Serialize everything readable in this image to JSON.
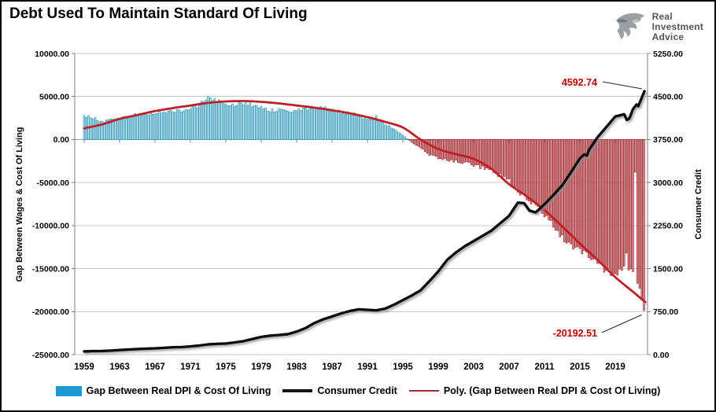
{
  "header": {
    "title": "Debt Used To Maintain Standard Of Living",
    "logo": {
      "icon": "eagle-icon",
      "lines": [
        "Real",
        "Investment",
        "Advice"
      ]
    }
  },
  "chart_data": {
    "type": "combo",
    "title": "Debt Used To Maintain Standard Of Living",
    "grid": "horizontal",
    "legend_position": "bottom",
    "x_axis": {
      "tick_years": [
        1959,
        1963,
        1967,
        1971,
        1975,
        1979,
        1983,
        1987,
        1991,
        1995,
        1999,
        2003,
        2007,
        2011,
        2015,
        2019
      ],
      "tick_labels": [
        "1959",
        "1963",
        "1967",
        "1971",
        "1975",
        "1979",
        "1983",
        "1987",
        "1991",
        "1995",
        "1999",
        "2003",
        "2007",
        "2011",
        "2015",
        "2019"
      ]
    },
    "left_axis": {
      "label": "Gap Between Wages & Cost Of Living",
      "min": -25000,
      "max": 10000,
      "tick_values": [
        10000,
        5000,
        0,
        -5000,
        -10000,
        -15000,
        -20000,
        -25000
      ],
      "tick_labels": [
        "10000.00",
        "5000.00",
        "0.00",
        "-5000.00",
        "-10000.00",
        "-15000.00",
        "-20000.00",
        "-25000.00"
      ]
    },
    "right_axis": {
      "label": "Consumer Credit",
      "min": 0,
      "max": 5250,
      "tick_values": [
        5250,
        4500,
        3750,
        3000,
        2250,
        1500,
        750,
        0
      ],
      "tick_labels": [
        "5250.00",
        "4500.00",
        "3750.00",
        "3000.00",
        "2250.00",
        "1500.00",
        "750.00",
        "0.00"
      ]
    },
    "series": [
      {
        "name": "Gap Between Real DPI & Cost Of Living",
        "type": "bar",
        "axis": "left",
        "bars_per_year": 4,
        "fill_positive": "#c6e9f3",
        "stroke_positive": "#2e93b2",
        "fill_negative": "#dc9ba0",
        "stroke_negative": "#9c2127",
        "anchors": [
          [
            1959,
            2750
          ],
          [
            1960,
            2550
          ],
          [
            1961,
            2050
          ],
          [
            1962,
            2300
          ],
          [
            1963,
            2500
          ],
          [
            1964,
            2700
          ],
          [
            1965,
            2900
          ],
          [
            1966,
            3000
          ],
          [
            1967,
            3100
          ],
          [
            1968,
            3200
          ],
          [
            1969,
            3300
          ],
          [
            1970,
            3400
          ],
          [
            1971,
            3600
          ],
          [
            1972,
            4100
          ],
          [
            1972.5,
            4600
          ],
          [
            1973,
            5050
          ],
          [
            1973.5,
            4750
          ],
          [
            1974,
            4400
          ],
          [
            1975,
            4200
          ],
          [
            1976,
            4100
          ],
          [
            1977,
            4000
          ],
          [
            1978,
            4100
          ],
          [
            1979,
            3800
          ],
          [
            1980,
            3300
          ],
          [
            1981,
            3500
          ],
          [
            1982,
            3200
          ],
          [
            1983,
            3300
          ],
          [
            1984,
            3700
          ],
          [
            1985,
            3500
          ],
          [
            1986,
            3650
          ],
          [
            1987,
            3300
          ],
          [
            1988,
            3200
          ],
          [
            1989,
            3000
          ],
          [
            1990,
            2800
          ],
          [
            1991,
            2300
          ],
          [
            1992,
            2600
          ],
          [
            1993,
            1800
          ],
          [
            1994,
            1200
          ],
          [
            1995,
            500
          ],
          [
            1996,
            -300
          ],
          [
            1997,
            -1000
          ],
          [
            1998,
            -1800
          ],
          [
            1999,
            -2150
          ],
          [
            2000,
            -2350
          ],
          [
            2001,
            -2500
          ],
          [
            2002,
            -2700
          ],
          [
            2003,
            -3000
          ],
          [
            2004,
            -3300
          ],
          [
            2005,
            -3700
          ],
          [
            2006,
            -4200
          ],
          [
            2007,
            -4800
          ],
          [
            2008,
            -6300
          ],
          [
            2009,
            -6700
          ],
          [
            2010,
            -7500
          ],
          [
            2011,
            -8600
          ],
          [
            2012,
            -10000
          ],
          [
            2013,
            -11500
          ],
          [
            2014,
            -12300
          ],
          [
            2015,
            -12900
          ],
          [
            2016,
            -13600
          ],
          [
            2017,
            -14500
          ],
          [
            2018,
            -15300
          ],
          [
            2019,
            -15900
          ],
          [
            2020,
            -14600
          ],
          [
            2021,
            -15500
          ],
          [
            2021.8,
            -17500
          ],
          [
            2022.25,
            -20192.51
          ]
        ],
        "anomalies": [
          [
            2020.25,
            -13200
          ],
          [
            2021.25,
            -3800
          ]
        ],
        "last_value": -20192.51
      },
      {
        "name": "Consumer Credit",
        "type": "line",
        "axis": "right",
        "color": "#0d0d0d",
        "points": [
          [
            1959,
            55
          ],
          [
            1960,
            60
          ],
          [
            1961,
            63
          ],
          [
            1962,
            70
          ],
          [
            1963,
            80
          ],
          [
            1964,
            88
          ],
          [
            1965,
            97
          ],
          [
            1966,
            103
          ],
          [
            1967,
            108
          ],
          [
            1968,
            118
          ],
          [
            1969,
            127
          ],
          [
            1970,
            132
          ],
          [
            1971,
            142
          ],
          [
            1972,
            158
          ],
          [
            1973,
            178
          ],
          [
            1974,
            188
          ],
          [
            1975,
            193
          ],
          [
            1976,
            212
          ],
          [
            1977,
            235
          ],
          [
            1978,
            272
          ],
          [
            1979,
            308
          ],
          [
            1980,
            330
          ],
          [
            1981,
            342
          ],
          [
            1982,
            356
          ],
          [
            1983,
            400
          ],
          [
            1984,
            462
          ],
          [
            1985,
            550
          ],
          [
            1986,
            615
          ],
          [
            1987,
            665
          ],
          [
            1988,
            715
          ],
          [
            1989,
            760
          ],
          [
            1990,
            790
          ],
          [
            1991,
            780
          ],
          [
            1992,
            772
          ],
          [
            1993,
            800
          ],
          [
            1994,
            870
          ],
          [
            1995,
            950
          ],
          [
            1996,
            1030
          ],
          [
            1997,
            1120
          ],
          [
            1998,
            1280
          ],
          [
            1999,
            1450
          ],
          [
            2000,
            1650
          ],
          [
            2001,
            1780
          ],
          [
            2002,
            1890
          ],
          [
            2003,
            1980
          ],
          [
            2004,
            2070
          ],
          [
            2005,
            2160
          ],
          [
            2006,
            2290
          ],
          [
            2007,
            2420
          ],
          [
            2008,
            2650
          ],
          [
            2008.7,
            2640
          ],
          [
            2009.3,
            2510
          ],
          [
            2010,
            2480
          ],
          [
            2011,
            2620
          ],
          [
            2012,
            2780
          ],
          [
            2013,
            2950
          ],
          [
            2014,
            3180
          ],
          [
            2015,
            3420
          ],
          [
            2015.5,
            3490
          ],
          [
            2015.8,
            3470
          ],
          [
            2016,
            3560
          ],
          [
            2017,
            3790
          ],
          [
            2018,
            3970
          ],
          [
            2019,
            4150
          ],
          [
            2020,
            4190
          ],
          [
            2020.3,
            4090
          ],
          [
            2020.6,
            4120
          ],
          [
            2021,
            4280
          ],
          [
            2021.4,
            4360
          ],
          [
            2021.6,
            4330
          ],
          [
            2022.3,
            4592.74
          ]
        ],
        "last_value": 4592.74
      },
      {
        "name": "Poly. (Gap Between Real DPI & Cost Of Living)",
        "type": "trendline",
        "axis": "left",
        "color": "#be2026",
        "points": [
          [
            1959,
            1300
          ],
          [
            1961,
            1750
          ],
          [
            1963,
            2400
          ],
          [
            1965,
            2850
          ],
          [
            1967,
            3300
          ],
          [
            1969,
            3650
          ],
          [
            1971,
            3950
          ],
          [
            1973,
            4250
          ],
          [
            1975,
            4430
          ],
          [
            1977,
            4470
          ],
          [
            1979,
            4380
          ],
          [
            1981,
            4200
          ],
          [
            1983,
            3950
          ],
          [
            1985,
            3700
          ],
          [
            1987,
            3400
          ],
          [
            1989,
            3050
          ],
          [
            1991,
            2600
          ],
          [
            1993,
            2050
          ],
          [
            1995,
            1400
          ],
          [
            1997,
            0
          ],
          [
            1999,
            -1100
          ],
          [
            2001,
            -1700
          ],
          [
            2003,
            -2250
          ],
          [
            2005,
            -3400
          ],
          [
            2007,
            -5200
          ],
          [
            2009,
            -6600
          ],
          [
            2011,
            -8200
          ],
          [
            2013,
            -10100
          ],
          [
            2015,
            -12100
          ],
          [
            2017,
            -14000
          ],
          [
            2019,
            -16000
          ],
          [
            2021,
            -17700
          ],
          [
            2022.4,
            -18900
          ]
        ]
      }
    ],
    "annotations": [
      {
        "id": "cc-end",
        "text": "4592.74",
        "color": "#c00000"
      },
      {
        "id": "poly-end",
        "text": "-20192.51",
        "color": "#c00000"
      }
    ]
  },
  "legend": {
    "items": [
      {
        "label": "Gap Between Real DPI & Cost Of Living",
        "swatch_type": "bar",
        "color": "#1b9ad2"
      },
      {
        "label": "Consumer Credit",
        "swatch_type": "line",
        "color": "#141414"
      },
      {
        "label": "Poly. (Gap Between Real DPI & Cost Of Living)",
        "swatch_type": "thin-line",
        "color": "#9e2b2f"
      }
    ]
  }
}
